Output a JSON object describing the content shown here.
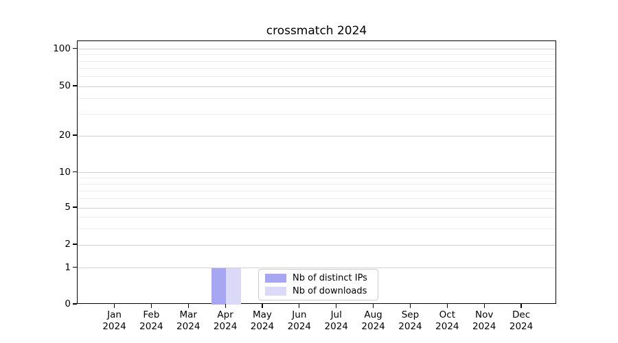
{
  "chart_data": {
    "type": "bar",
    "title": "crossmatch 2024",
    "categories": [
      "Jan",
      "Feb",
      "Mar",
      "Apr",
      "May",
      "Jun",
      "Jul",
      "Aug",
      "Sep",
      "Oct",
      "Nov",
      "Dec"
    ],
    "category_year": "2024",
    "series": [
      {
        "name": "Nb of distinct IPs",
        "color": "#a6a6f2",
        "values": [
          0,
          0,
          0,
          1,
          0,
          0,
          0,
          0,
          0,
          0,
          0,
          0
        ]
      },
      {
        "name": "Nb of downloads",
        "color": "#dadaf8",
        "values": [
          0,
          0,
          0,
          1,
          0,
          0,
          0,
          0,
          0,
          0,
          0,
          0
        ]
      }
    ],
    "yscale": "log-like",
    "ytick_labels": [
      "100",
      "50",
      "20",
      "10",
      "5",
      "2",
      "1",
      "0"
    ],
    "ytick_values": [
      100,
      50,
      20,
      10,
      5,
      2,
      1,
      0
    ],
    "minor_gridline_values": [
      90,
      80,
      70,
      60,
      40,
      30,
      9,
      8,
      7,
      6,
      4,
      3
    ],
    "grid": "horizontal",
    "legend": {
      "position": "inside-bottom-center"
    },
    "colors": {
      "major_grid": "#cfcfcf",
      "minor_grid": "#ebebeb",
      "axis": "#000000",
      "background": "#ffffff"
    }
  }
}
